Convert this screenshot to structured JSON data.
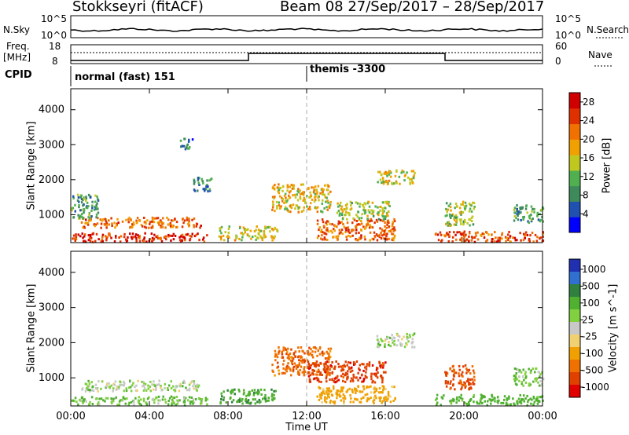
{
  "header": {
    "station": "Stokkseyri (fitACF)",
    "beam_date": "Beam 08  27/Sep/2017 – 28/Sep/2017"
  },
  "noise_panel": {
    "left_label": "N.Sky",
    "left_ticks": [
      "10^5",
      "10^0"
    ],
    "right_label": "N.Search",
    "right_ticks": [
      "10^5",
      "10^0"
    ]
  },
  "freq_panel": {
    "left_label_1": "Freq.",
    "left_label_2": "[MHz]",
    "left_ticks": [
      "18",
      "8"
    ],
    "right_label": "Nave",
    "right_ticks": [
      "60",
      "0"
    ]
  },
  "cpid": {
    "label": "CPID",
    "mode_1": "normal (fast) 151",
    "mode_2": "themis -3300"
  },
  "chart_data": [
    {
      "type": "heatmap",
      "title": "",
      "xlabel": "",
      "ylabel": "Slant Range [km]",
      "xlim": [
        "00:00",
        "24:00"
      ],
      "ylim": [
        200,
        4600
      ],
      "yticks": [
        1000,
        2000,
        3000,
        4000
      ],
      "colorbar": {
        "label": "Power [dB]",
        "ticks": [
          4,
          8,
          12,
          16,
          20,
          24,
          28
        ],
        "range": [
          0,
          30
        ],
        "colors": [
          "#0000ff",
          "#2050b0",
          "#3e8a5a",
          "#50b050",
          "#c0c820",
          "#f0a000",
          "#f07000",
          "#e03000",
          "#d00000"
        ]
      },
      "regions": [
        {
          "t0": 0.0,
          "t1": 7.0,
          "r0": 250,
          "r1": 500,
          "level": 26
        },
        {
          "t0": 0.5,
          "t1": 6.6,
          "r0": 650,
          "r1": 950,
          "level": 22
        },
        {
          "t0": 0.0,
          "t1": 1.4,
          "r0": 900,
          "r1": 1600,
          "level": 10
        },
        {
          "t0": 7.5,
          "t1": 10.5,
          "r0": 300,
          "r1": 700,
          "level": 16
        },
        {
          "t0": 10.2,
          "t1": 13.2,
          "r0": 1100,
          "r1": 1900,
          "level": 17
        },
        {
          "t0": 12.5,
          "t1": 16.5,
          "r0": 300,
          "r1": 900,
          "level": 22
        },
        {
          "t0": 13.5,
          "t1": 16.2,
          "r0": 900,
          "r1": 1400,
          "level": 14
        },
        {
          "t0": 15.5,
          "t1": 17.5,
          "r0": 1900,
          "r1": 2300,
          "level": 16
        },
        {
          "t0": 18.5,
          "t1": 24.0,
          "r0": 250,
          "r1": 550,
          "level": 24
        },
        {
          "t0": 19.0,
          "t1": 20.5,
          "r0": 700,
          "r1": 1400,
          "level": 14
        },
        {
          "t0": 22.5,
          "t1": 24.0,
          "r0": 800,
          "r1": 1300,
          "level": 10
        },
        {
          "t0": 5.5,
          "t1": 6.2,
          "r0": 2900,
          "r1": 3200,
          "level": 8
        },
        {
          "t0": 6.2,
          "t1": 7.2,
          "r0": 1700,
          "r1": 2100,
          "level": 8
        }
      ]
    },
    {
      "type": "heatmap",
      "title": "",
      "xlabel": "Time UT",
      "ylabel": "Slant Range [km]",
      "xticks": [
        "00:00",
        "04:00",
        "08:00",
        "12:00",
        "16:00",
        "20:00",
        "00:00"
      ],
      "ylim": [
        200,
        4600
      ],
      "yticks": [
        1000,
        2000,
        3000,
        4000
      ],
      "colorbar": {
        "label": "Velocity [m s^-1]",
        "ticks": [
          1000,
          500,
          100,
          25,
          -25,
          -100,
          -500,
          -1000
        ],
        "colors": [
          "#2030b0",
          "#3070d0",
          "#308040",
          "#50b030",
          "#80d040",
          "#c8c8c8",
          "#f0d070",
          "#f0a000",
          "#f07000",
          "#e04000",
          "#e00000"
        ]
      },
      "regions": [
        {
          "t0": 0.0,
          "t1": 7.0,
          "r0": 250,
          "r1": 500,
          "level": 25
        },
        {
          "t0": 0.5,
          "t1": 6.6,
          "r0": 650,
          "r1": 950,
          "level": 0
        },
        {
          "t0": 7.5,
          "t1": 10.5,
          "r0": 300,
          "r1": 700,
          "level": 80
        },
        {
          "t0": 10.2,
          "t1": 13.2,
          "r0": 1100,
          "r1": 1900,
          "level": -400
        },
        {
          "t0": 12.0,
          "t1": 16.0,
          "r0": 900,
          "r1": 1500,
          "level": -800
        },
        {
          "t0": 12.5,
          "t1": 16.5,
          "r0": 300,
          "r1": 800,
          "level": -150
        },
        {
          "t0": 15.5,
          "t1": 17.5,
          "r0": 1900,
          "r1": 2300,
          "level": 0
        },
        {
          "t0": 18.5,
          "t1": 24.0,
          "r0": 250,
          "r1": 550,
          "level": 50
        },
        {
          "t0": 19.0,
          "t1": 20.5,
          "r0": 700,
          "r1": 1400,
          "level": -600
        },
        {
          "t0": 22.5,
          "t1": 24.0,
          "r0": 800,
          "r1": 1300,
          "level": 20
        }
      ]
    }
  ]
}
